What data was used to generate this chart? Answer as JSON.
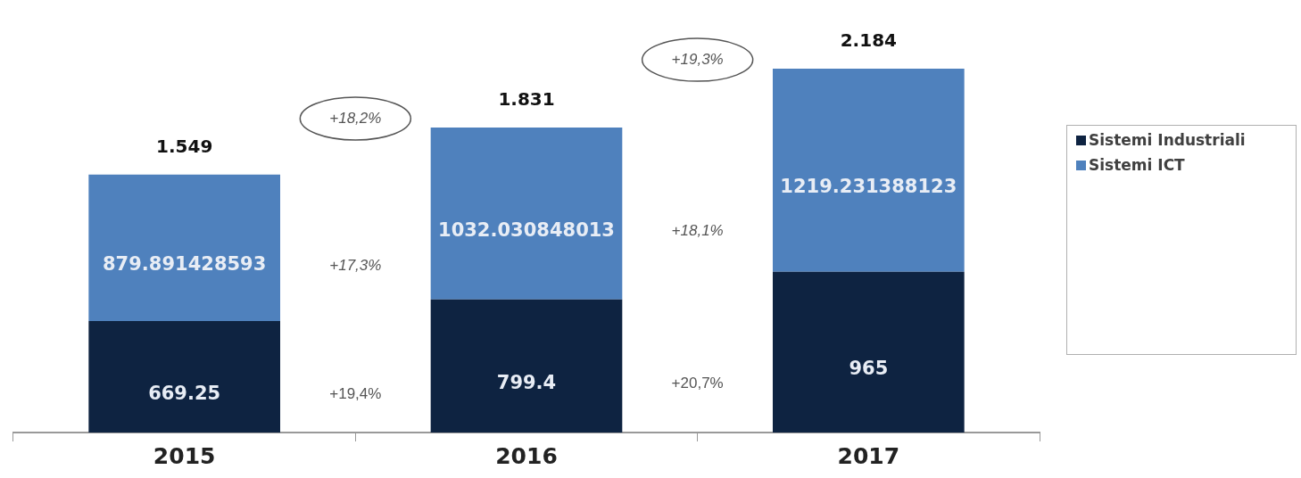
{
  "chart_data": {
    "type": "bar",
    "stacked": true,
    "categories": [
      "2015",
      "2016",
      "2017"
    ],
    "series": [
      {
        "name": "Sistemi Industriali",
        "color": "#0e2341",
        "values": [
          669.25,
          799.4,
          965
        ]
      },
      {
        "name": "Sistemi ICT",
        "color": "#4f81bd",
        "values": [
          879.891428593,
          1032.030848013,
          1219.231388123
        ]
      }
    ],
    "data_labels": true,
    "totals": [
      "1.549",
      "1.831",
      "2.184"
    ],
    "annotations": [
      "+18,2%",
      "+19,3%",
      "+17,3%",
      "+18,1%",
      "+19,4%",
      "+20,7%"
    ],
    "legend": "right",
    "grid": false
  }
}
